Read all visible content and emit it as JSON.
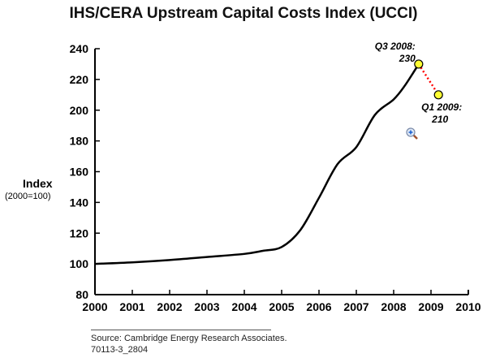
{
  "chart_data": {
    "type": "line",
    "title": "IHS/CERA Upstream Capital Costs Index (UCCI)",
    "ylabel": "Index",
    "ylabel_sub": "(2000=100)",
    "xlim": [
      2000,
      2010
    ],
    "ylim": [
      80,
      240
    ],
    "xticks": [
      "2000",
      "2001",
      "2002",
      "2003",
      "2004",
      "2005",
      "2006",
      "2007",
      "2008",
      "2009",
      "2010"
    ],
    "yticks": [
      "80",
      "100",
      "120",
      "140",
      "160",
      "180",
      "200",
      "220",
      "240"
    ],
    "series": [
      {
        "name": "UCCI",
        "x": [
          2000,
          2001,
          2002,
          2003,
          2004,
          2004.5,
          2005,
          2005.5,
          2006,
          2006.5,
          2007,
          2007.5,
          2008,
          2008.3,
          2008.67
        ],
        "y": [
          100,
          101,
          102.5,
          104.5,
          106.5,
          108.5,
          111,
          122,
          143,
          165,
          176,
          197,
          207,
          216,
          230
        ],
        "color": "#000000"
      }
    ],
    "projection": {
      "x": [
        2008.67,
        2009.2
      ],
      "y": [
        230,
        210
      ],
      "color": "#ff0000",
      "style": "dotted"
    },
    "annotations": [
      {
        "label": "Q3 2008:",
        "value": "230",
        "x": 2008.67,
        "y": 230
      },
      {
        "label": "Q1 2009:",
        "value": "210",
        "x": 2009.2,
        "y": 210
      }
    ],
    "marker_color": "#ffff33",
    "source": "Source: Cambridge Energy Research Associates.",
    "code": "70113-3_2804"
  }
}
